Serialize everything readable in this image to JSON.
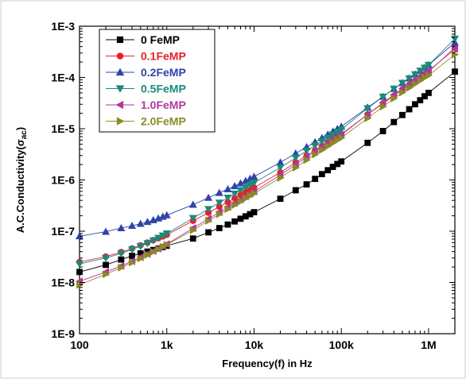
{
  "chart_data": {
    "type": "scatter",
    "x_scale": "log",
    "y_scale": "log",
    "xlabel": "Frequency(f) in Hz",
    "ylabel_main": "A.C.Conductivity(σ",
    "ylabel_sub": "ac",
    "ylabel_close": ")",
    "xlim": [
      100,
      2000000
    ],
    "ylim": [
      1e-09,
      0.001
    ],
    "x_ticks": [
      {
        "value": 100,
        "label": "100"
      },
      {
        "value": 1000,
        "label": "1k"
      },
      {
        "value": 10000,
        "label": "10k"
      },
      {
        "value": 100000,
        "label": "100k"
      },
      {
        "value": 1000000,
        "label": "1M"
      }
    ],
    "y_ticks": [
      {
        "value": 1e-09,
        "label": "1E-9"
      },
      {
        "value": 1e-08,
        "label": "1E-8"
      },
      {
        "value": 1e-07,
        "label": "1E-7"
      },
      {
        "value": 1e-06,
        "label": "1E-6"
      },
      {
        "value": 1e-05,
        "label": "1E-5"
      },
      {
        "value": 0.0001,
        "label": "1E-4"
      },
      {
        "value": 0.001,
        "label": "1E-3"
      }
    ],
    "legend_position": "top-left",
    "x": [
      100,
      200,
      300,
      400,
      500,
      600,
      700,
      800,
      900,
      1000,
      2000,
      3000,
      4000,
      5000,
      6000,
      7000,
      8000,
      9000,
      10000,
      20000,
      30000,
      40000,
      50000,
      60000,
      70000,
      80000,
      90000,
      100000,
      200000,
      300000,
      400000,
      500000,
      600000,
      700000,
      800000,
      900000,
      1000000,
      2000000
    ],
    "series": [
      {
        "name": "0   FeMP",
        "marker": "square",
        "color": "#000000",
        "values": [
          1.6e-08,
          2.2e-08,
          2.8e-08,
          3.3e-08,
          3.7e-08,
          4e-08,
          4.3e-08,
          4.6e-08,
          4.9e-08,
          5.2e-08,
          7.2e-08,
          9.5e-08,
          1.15e-07,
          1.35e-07,
          1.55e-07,
          1.75e-07,
          1.95e-07,
          2.15e-07,
          2.35e-07,
          4.3e-07,
          6.3e-07,
          8.2e-07,
          1.05e-06,
          1.3e-06,
          1.55e-06,
          1.8e-06,
          2.05e-06,
          2.3e-06,
          5.3e-06,
          9e-06,
          1.35e-05,
          1.85e-05,
          2.4e-05,
          3e-05,
          3.6e-05,
          4.3e-05,
          5e-05,
          0.00013
        ]
      },
      {
        "name": "0.1FeMP",
        "marker": "circle",
        "color": "#e8202a",
        "values": [
          2.5e-08,
          3.2e-08,
          3.9e-08,
          4.6e-08,
          5.3e-08,
          6e-08,
          6.7e-08,
          7.3e-08,
          7.9e-08,
          8.5e-08,
          1.6e-07,
          2.3e-07,
          3e-07,
          3.7e-07,
          4.4e-07,
          5.1e-07,
          5.8e-07,
          6.4e-07,
          7.1e-07,
          1.4e-06,
          2.2e-06,
          3e-06,
          3.8e-06,
          4.6e-06,
          5.4e-06,
          6.2e-06,
          7e-06,
          7.8e-06,
          1.9e-05,
          3.1e-05,
          4.4e-05,
          5.8e-05,
          7.2e-05,
          8.6e-05,
          0.0001,
          0.000115,
          0.00013,
          0.00038
        ]
      },
      {
        "name": "0.2FeMP",
        "marker": "triangle-up",
        "color": "#2f44a8",
        "values": [
          8e-08,
          9.8e-08,
          1.15e-07,
          1.28e-07,
          1.4e-07,
          1.52e-07,
          1.65e-07,
          1.78e-07,
          1.92e-07,
          2.05e-07,
          3.3e-07,
          4.5e-07,
          5.6e-07,
          6.6e-07,
          7.6e-07,
          8.6e-07,
          9.6e-07,
          1.06e-06,
          1.16e-06,
          2.2e-06,
          3.3e-06,
          4.4e-06,
          5.5e-06,
          6.6e-06,
          7.7e-06,
          8.8e-06,
          9.9e-06,
          1.1e-05,
          2.6e-05,
          4.2e-05,
          6e-05,
          7.8e-05,
          9.6e-05,
          0.000115,
          0.000135,
          0.000155,
          0.000175,
          0.00048
        ]
      },
      {
        "name": "0.5FeMP",
        "marker": "triangle-down",
        "color": "#1a8a7c",
        "values": [
          2.3e-08,
          3e-08,
          3.7e-08,
          4.4e-08,
          5.1e-08,
          5.8e-08,
          6.6e-08,
          7.4e-08,
          8.2e-08,
          9e-08,
          1.8e-07,
          2.7e-07,
          3.6e-07,
          4.5e-07,
          5.4e-07,
          6.3e-07,
          7.2e-07,
          8e-07,
          8.8e-07,
          1.75e-06,
          2.7e-06,
          3.7e-06,
          4.7e-06,
          5.7e-06,
          6.7e-06,
          7.7e-06,
          8.7e-06,
          9.7e-06,
          2.5e-05,
          4.2e-05,
          6e-05,
          7.8e-05,
          9.6e-05,
          0.000115,
          0.000135,
          0.000155,
          0.000175,
          0.00057
        ]
      },
      {
        "name": "1.0FeMP",
        "marker": "triangle-left",
        "color": "#b0389c",
        "values": [
          1.05e-08,
          1.6e-08,
          2.1e-08,
          2.6e-08,
          3.1e-08,
          3.6e-08,
          4.1e-08,
          4.6e-08,
          5.1e-08,
          5.6e-08,
          1.15e-07,
          1.75e-07,
          2.35e-07,
          2.95e-07,
          3.55e-07,
          4.15e-07,
          4.75e-07,
          5.35e-07,
          5.95e-07,
          1.25e-06,
          2e-06,
          2.8e-06,
          3.6e-06,
          4.4e-06,
          5.2e-06,
          6e-06,
          6.8e-06,
          7.6e-06,
          1.9e-05,
          3.2e-05,
          4.6e-05,
          6e-05,
          7.4e-05,
          8.9e-05,
          0.000104,
          0.000119,
          0.000135,
          0.00036
        ]
      },
      {
        "name": "2.0FeMP",
        "marker": "triangle-right",
        "color": "#8a8a24",
        "values": [
          9e-09,
          1.45e-08,
          1.95e-08,
          2.45e-08,
          2.95e-08,
          3.45e-08,
          3.95e-08,
          4.45e-08,
          4.95e-08,
          5.45e-08,
          1.05e-07,
          1.6e-07,
          2.15e-07,
          2.7e-07,
          3.25e-07,
          3.8e-07,
          4.35e-07,
          4.9e-07,
          5.45e-07,
          1.1e-06,
          1.75e-06,
          2.45e-06,
          3.15e-06,
          3.85e-06,
          4.55e-06,
          5.25e-06,
          5.95e-06,
          6.65e-06,
          1.6e-05,
          2.7e-05,
          3.9e-05,
          5.1e-05,
          6.3e-05,
          7.5e-05,
          8.7e-05,
          9.9e-05,
          0.00011,
          0.00028
        ]
      }
    ]
  }
}
